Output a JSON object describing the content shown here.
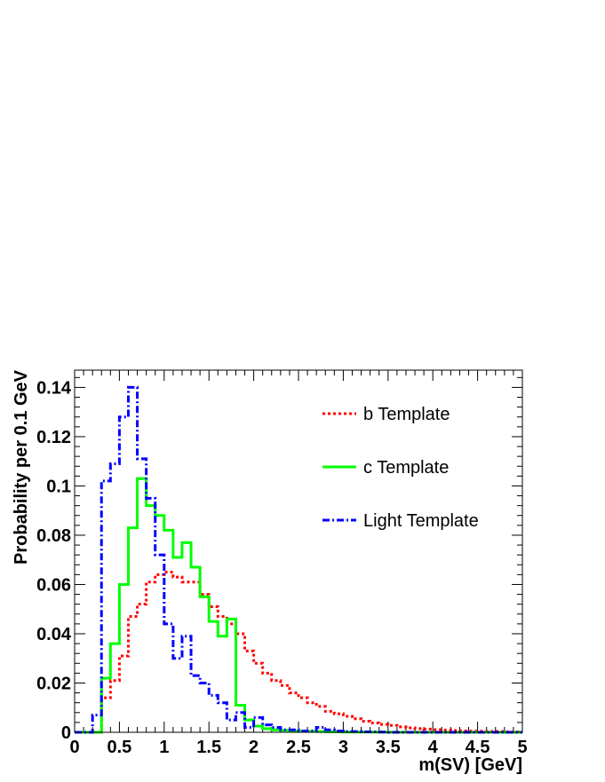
{
  "chart_data": {
    "type": "line",
    "xlabel": "m(SV) [GeV]",
    "ylabel": "Probability per 0.1 GeV",
    "xlim": [
      0,
      5
    ],
    "ylim": [
      0,
      0.147
    ],
    "bin_width": 0.1,
    "x_ticks": [
      "0",
      "0.5",
      "1",
      "1.5",
      "2",
      "2.5",
      "3",
      "3.5",
      "4",
      "4.5",
      "5"
    ],
    "y_ticks": [
      "0",
      "0.02",
      "0.04",
      "0.06",
      "0.08",
      "0.1",
      "0.12",
      "0.14"
    ],
    "x_tick_values": [
      0,
      0.5,
      1,
      1.5,
      2,
      2.5,
      3,
      3.5,
      4,
      4.5,
      5
    ],
    "y_tick_values": [
      0,
      0.02,
      0.04,
      0.06,
      0.08,
      0.1,
      0.12,
      0.14
    ],
    "legend_position": "top-right",
    "grid": false,
    "series": [
      {
        "name": "b Template",
        "color": "#ff0000",
        "style": "dotted",
        "bin_edges_start": 0,
        "values": [
          0,
          0,
          0,
          0.014,
          0.021,
          0.031,
          0.047,
          0.052,
          0.061,
          0.064,
          0.065,
          0.063,
          0.061,
          0.061,
          0.056,
          0.051,
          0.047,
          0.044,
          0.04,
          0.033,
          0.028,
          0.024,
          0.021,
          0.019,
          0.016,
          0.014,
          0.012,
          0.0105,
          0.0085,
          0.0075,
          0.0065,
          0.0055,
          0.0045,
          0.0038,
          0.0032,
          0.0028,
          0.0022,
          0.0018,
          0.0015,
          0.0013,
          0.0011,
          0.0009,
          0.0007,
          0.0006,
          0.0005,
          0.0004,
          0.0003,
          0.0003,
          0.0002,
          0.0002
        ]
      },
      {
        "name": "c Template",
        "color": "#00ff00",
        "style": "solid",
        "bin_edges_start": 0,
        "values": [
          0,
          0,
          0,
          0.022,
          0.036,
          0.06,
          0.083,
          0.103,
          0.092,
          0.088,
          0.082,
          0.071,
          0.077,
          0.067,
          0.055,
          0.045,
          0.039,
          0.046,
          0.011,
          0.005,
          0.0025,
          0.0015,
          0.001,
          0.0008,
          0.0006,
          0.0005,
          0.0004,
          0.0003,
          0.0002,
          0.0002,
          0.0001,
          0.0001,
          0.0001,
          0.0001,
          0.0001,
          0,
          0,
          0,
          0,
          0,
          0,
          0,
          0,
          0,
          0,
          0,
          0,
          0,
          0,
          0
        ]
      },
      {
        "name": "Light Template",
        "color": "#0000ff",
        "style": "dash-dot",
        "bin_edges_start": 0,
        "values": [
          0,
          0,
          0.007,
          0.102,
          0.109,
          0.128,
          0.14,
          0.111,
          0.095,
          0.072,
          0.044,
          0.03,
          0.039,
          0.023,
          0.02,
          0.015,
          0.012,
          0.005,
          0.008,
          0.002,
          0.006,
          0.003,
          0.002,
          0.001,
          0.001,
          0.0005,
          0.0005,
          0.002,
          0.001,
          0.0005,
          0.0003,
          0.0003,
          0.0002,
          0.0002,
          0.0001,
          0,
          0,
          0,
          0,
          0,
          0,
          0,
          0,
          0,
          0,
          0,
          0,
          0,
          0,
          0
        ]
      }
    ]
  }
}
